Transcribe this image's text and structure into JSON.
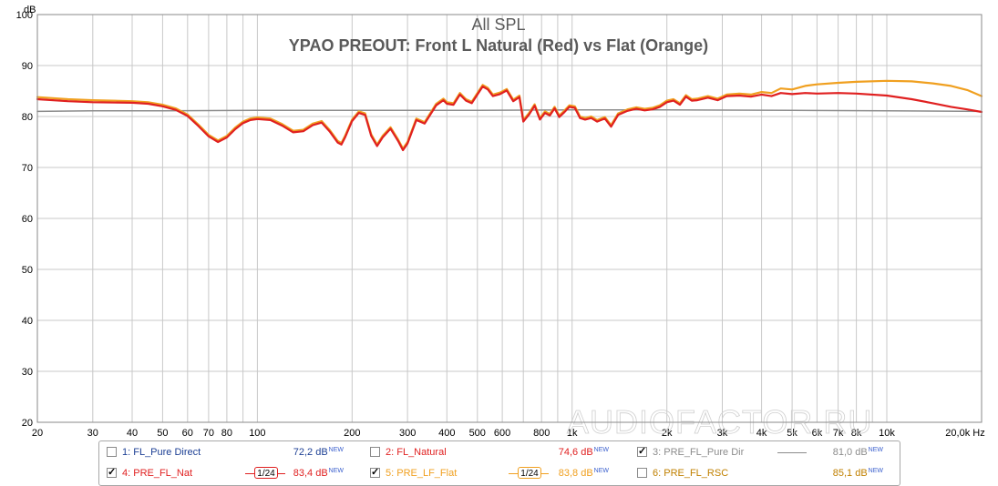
{
  "chart_data": {
    "type": "line",
    "title": "All SPL",
    "subtitle": "YPAO PREOUT: Front L Natural (Red) vs Flat (Orange)",
    "y_unit": "dB",
    "x_unit": "Hz",
    "x_scale": "log",
    "xlim": [
      20,
      20000
    ],
    "ylim": [
      20,
      100
    ],
    "grid": true,
    "y_ticks": [
      "100",
      "90",
      "80",
      "70",
      "60",
      "50",
      "40",
      "30",
      "20"
    ],
    "x_ticks": [
      {
        "value": 20,
        "label": "20"
      },
      {
        "value": 30,
        "label": "30"
      },
      {
        "value": 40,
        "label": "40"
      },
      {
        "value": 50,
        "label": "50"
      },
      {
        "value": 60,
        "label": "60"
      },
      {
        "value": 70,
        "label": "70"
      },
      {
        "value": 80,
        "label": "80"
      },
      {
        "value": 100,
        "label": "100"
      },
      {
        "value": 200,
        "label": "200"
      },
      {
        "value": 300,
        "label": "300"
      },
      {
        "value": 400,
        "label": "400"
      },
      {
        "value": 500,
        "label": "500"
      },
      {
        "value": 600,
        "label": "600"
      },
      {
        "value": 800,
        "label": "800"
      },
      {
        "value": 1000,
        "label": "1k"
      },
      {
        "value": 2000,
        "label": "2k"
      },
      {
        "value": 3000,
        "label": "3k"
      },
      {
        "value": 4000,
        "label": "4k"
      },
      {
        "value": 5000,
        "label": "5k"
      },
      {
        "value": 6000,
        "label": "6k"
      },
      {
        "value": 7000,
        "label": "7k"
      },
      {
        "value": 8000,
        "label": "8k"
      },
      {
        "value": 10000,
        "label": "10k"
      },
      {
        "value": 20000,
        "label": "20,0k Hz"
      }
    ],
    "series": [
      {
        "name": "PRE_FL_Pure Dir",
        "color": "#8c8c8c",
        "points": [
          [
            20,
            81.0
          ],
          [
            30,
            81.1
          ],
          [
            50,
            81.1
          ],
          [
            100,
            81.2
          ],
          [
            200,
            81.2
          ],
          [
            500,
            81.2
          ],
          [
            1000,
            81.3
          ],
          [
            2000,
            81.3
          ],
          [
            5000,
            81.2
          ],
          [
            10000,
            81.1
          ],
          [
            20000,
            81.0
          ]
        ]
      },
      {
        "name": "PRE_LF_Flat",
        "color": "#f0a020",
        "points": [
          [
            20,
            83.8
          ],
          [
            25,
            83.4
          ],
          [
            30,
            83.2
          ],
          [
            40,
            83.0
          ],
          [
            45,
            82.8
          ],
          [
            50,
            82.3
          ],
          [
            55,
            81.6
          ],
          [
            60,
            80.4
          ],
          [
            65,
            78.4
          ],
          [
            70,
            76.4
          ],
          [
            75,
            75.3
          ],
          [
            80,
            76.2
          ],
          [
            85,
            77.8
          ],
          [
            90,
            79.0
          ],
          [
            95,
            79.6
          ],
          [
            100,
            79.8
          ],
          [
            110,
            79.6
          ],
          [
            120,
            78.5
          ],
          [
            130,
            77.2
          ],
          [
            140,
            77.4
          ],
          [
            150,
            78.6
          ],
          [
            160,
            79.1
          ],
          [
            170,
            77.3
          ],
          [
            180,
            75.2
          ],
          [
            185,
            74.8
          ],
          [
            190,
            76.2
          ],
          [
            200,
            79.4
          ],
          [
            210,
            81.0
          ],
          [
            220,
            80.6
          ],
          [
            230,
            76.5
          ],
          [
            240,
            74.5
          ],
          [
            250,
            76.2
          ],
          [
            265,
            77.9
          ],
          [
            280,
            75.5
          ],
          [
            290,
            73.7
          ],
          [
            300,
            75.0
          ],
          [
            320,
            79.6
          ],
          [
            340,
            78.9
          ],
          [
            370,
            82.5
          ],
          [
            390,
            83.5
          ],
          [
            400,
            82.8
          ],
          [
            420,
            82.6
          ],
          [
            440,
            84.6
          ],
          [
            460,
            83.4
          ],
          [
            480,
            82.9
          ],
          [
            500,
            84.6
          ],
          [
            520,
            86.2
          ],
          [
            540,
            85.6
          ],
          [
            560,
            84.3
          ],
          [
            590,
            84.7
          ],
          [
            620,
            85.4
          ],
          [
            650,
            83.3
          ],
          [
            680,
            84.1
          ],
          [
            700,
            79.3
          ],
          [
            730,
            80.7
          ],
          [
            760,
            82.4
          ],
          [
            790,
            79.7
          ],
          [
            820,
            81.0
          ],
          [
            850,
            80.5
          ],
          [
            880,
            81.9
          ],
          [
            910,
            80.2
          ],
          [
            940,
            81.0
          ],
          [
            980,
            82.2
          ],
          [
            1020,
            82.0
          ],
          [
            1060,
            80.0
          ],
          [
            1100,
            79.7
          ],
          [
            1150,
            80.0
          ],
          [
            1200,
            79.3
          ],
          [
            1270,
            79.9
          ],
          [
            1330,
            78.3
          ],
          [
            1400,
            80.6
          ],
          [
            1500,
            81.4
          ],
          [
            1600,
            81.8
          ],
          [
            1700,
            81.5
          ],
          [
            1800,
            81.7
          ],
          [
            1900,
            82.2
          ],
          [
            2000,
            83.1
          ],
          [
            2100,
            83.4
          ],
          [
            2200,
            82.6
          ],
          [
            2300,
            84.2
          ],
          [
            2400,
            83.4
          ],
          [
            2500,
            83.5
          ],
          [
            2700,
            84.0
          ],
          [
            2900,
            83.5
          ],
          [
            3100,
            84.3
          ],
          [
            3400,
            84.5
          ],
          [
            3700,
            84.3
          ],
          [
            4000,
            84.8
          ],
          [
            4300,
            84.6
          ],
          [
            4600,
            85.5
          ],
          [
            5000,
            85.3
          ],
          [
            5500,
            86.0
          ],
          [
            6000,
            86.3
          ],
          [
            7000,
            86.6
          ],
          [
            8000,
            86.8
          ],
          [
            10000,
            87.0
          ],
          [
            12000,
            86.9
          ],
          [
            14000,
            86.5
          ],
          [
            16000,
            86.0
          ],
          [
            18000,
            85.2
          ],
          [
            20000,
            84.0
          ]
        ]
      },
      {
        "name": "PRE_FL_Nat",
        "color": "#e02020",
        "points": [
          [
            20,
            83.4
          ],
          [
            25,
            83.0
          ],
          [
            30,
            82.8
          ],
          [
            40,
            82.7
          ],
          [
            45,
            82.5
          ],
          [
            50,
            82.0
          ],
          [
            55,
            81.3
          ],
          [
            60,
            80.1
          ],
          [
            65,
            78.1
          ],
          [
            70,
            76.1
          ],
          [
            75,
            75.0
          ],
          [
            80,
            75.9
          ],
          [
            85,
            77.5
          ],
          [
            90,
            78.7
          ],
          [
            95,
            79.3
          ],
          [
            100,
            79.5
          ],
          [
            110,
            79.3
          ],
          [
            120,
            78.2
          ],
          [
            130,
            76.9
          ],
          [
            140,
            77.1
          ],
          [
            150,
            78.3
          ],
          [
            160,
            78.8
          ],
          [
            170,
            77.0
          ],
          [
            180,
            74.9
          ],
          [
            185,
            74.5
          ],
          [
            190,
            75.9
          ],
          [
            200,
            79.1
          ],
          [
            210,
            80.7
          ],
          [
            220,
            80.3
          ],
          [
            230,
            76.2
          ],
          [
            240,
            74.2
          ],
          [
            250,
            75.9
          ],
          [
            265,
            77.6
          ],
          [
            280,
            75.2
          ],
          [
            290,
            73.4
          ],
          [
            300,
            74.7
          ],
          [
            320,
            79.3
          ],
          [
            340,
            78.6
          ],
          [
            370,
            82.2
          ],
          [
            390,
            83.2
          ],
          [
            400,
            82.5
          ],
          [
            420,
            82.3
          ],
          [
            440,
            84.3
          ],
          [
            460,
            83.1
          ],
          [
            480,
            82.6
          ],
          [
            500,
            84.3
          ],
          [
            520,
            85.9
          ],
          [
            540,
            85.3
          ],
          [
            560,
            84.0
          ],
          [
            590,
            84.4
          ],
          [
            620,
            85.1
          ],
          [
            650,
            83.0
          ],
          [
            680,
            83.8
          ],
          [
            700,
            79.0
          ],
          [
            730,
            80.4
          ],
          [
            760,
            82.1
          ],
          [
            790,
            79.4
          ],
          [
            820,
            80.7
          ],
          [
            850,
            80.2
          ],
          [
            880,
            81.6
          ],
          [
            910,
            79.9
          ],
          [
            940,
            80.7
          ],
          [
            980,
            81.9
          ],
          [
            1020,
            81.7
          ],
          [
            1060,
            79.7
          ],
          [
            1100,
            79.4
          ],
          [
            1150,
            79.7
          ],
          [
            1200,
            79.0
          ],
          [
            1270,
            79.6
          ],
          [
            1330,
            78.0
          ],
          [
            1400,
            80.3
          ],
          [
            1500,
            81.1
          ],
          [
            1600,
            81.5
          ],
          [
            1700,
            81.2
          ],
          [
            1800,
            81.4
          ],
          [
            1900,
            81.9
          ],
          [
            2000,
            82.8
          ],
          [
            2100,
            83.1
          ],
          [
            2200,
            82.3
          ],
          [
            2300,
            83.9
          ],
          [
            2400,
            83.1
          ],
          [
            2500,
            83.2
          ],
          [
            2700,
            83.7
          ],
          [
            2900,
            83.2
          ],
          [
            3100,
            84.0
          ],
          [
            3400,
            84.1
          ],
          [
            3700,
            83.9
          ],
          [
            4000,
            84.3
          ],
          [
            4300,
            84.0
          ],
          [
            4600,
            84.6
          ],
          [
            5000,
            84.4
          ],
          [
            5500,
            84.6
          ],
          [
            6000,
            84.5
          ],
          [
            7000,
            84.6
          ],
          [
            8000,
            84.5
          ],
          [
            10000,
            84.1
          ],
          [
            12000,
            83.4
          ],
          [
            14000,
            82.6
          ],
          [
            16000,
            81.9
          ],
          [
            18000,
            81.4
          ],
          [
            20000,
            80.9
          ]
        ]
      }
    ]
  },
  "watermark": "AUDIOFACTOR.RU",
  "legend": {
    "items": [
      {
        "id": "1",
        "label": "1: FL_Pure Direct",
        "value": "72,2 dB",
        "new": "NEW",
        "checked": false,
        "color": "#1c3f94",
        "style": "none"
      },
      {
        "id": "2",
        "label": "2: FL_Natural",
        "value": "74,6 dB",
        "new": "NEW",
        "checked": false,
        "color": "#e02020",
        "style": "none"
      },
      {
        "id": "3",
        "label": "3: PRE_FL_Pure Dir",
        "value": "81,0 dB",
        "new": "NEW",
        "checked": true,
        "color": "#8c8c8c",
        "style": "line"
      },
      {
        "id": "4",
        "label": "4: PRE_FL_Nat",
        "value": "83,4 dB",
        "new": "NEW",
        "checked": true,
        "color": "#e02020",
        "style": "smooth",
        "smoothing": "1/24"
      },
      {
        "id": "5",
        "label": "5: PRE_LF_Flat",
        "value": "83,8 dB",
        "new": "NEW",
        "checked": true,
        "color": "#f0a020",
        "style": "smooth",
        "smoothing": "1/24"
      },
      {
        "id": "6",
        "label": "6: PRE_FL_RSC",
        "value": "85,1 dB",
        "new": "NEW",
        "checked": false,
        "color": "#c08000",
        "style": "none"
      }
    ]
  }
}
